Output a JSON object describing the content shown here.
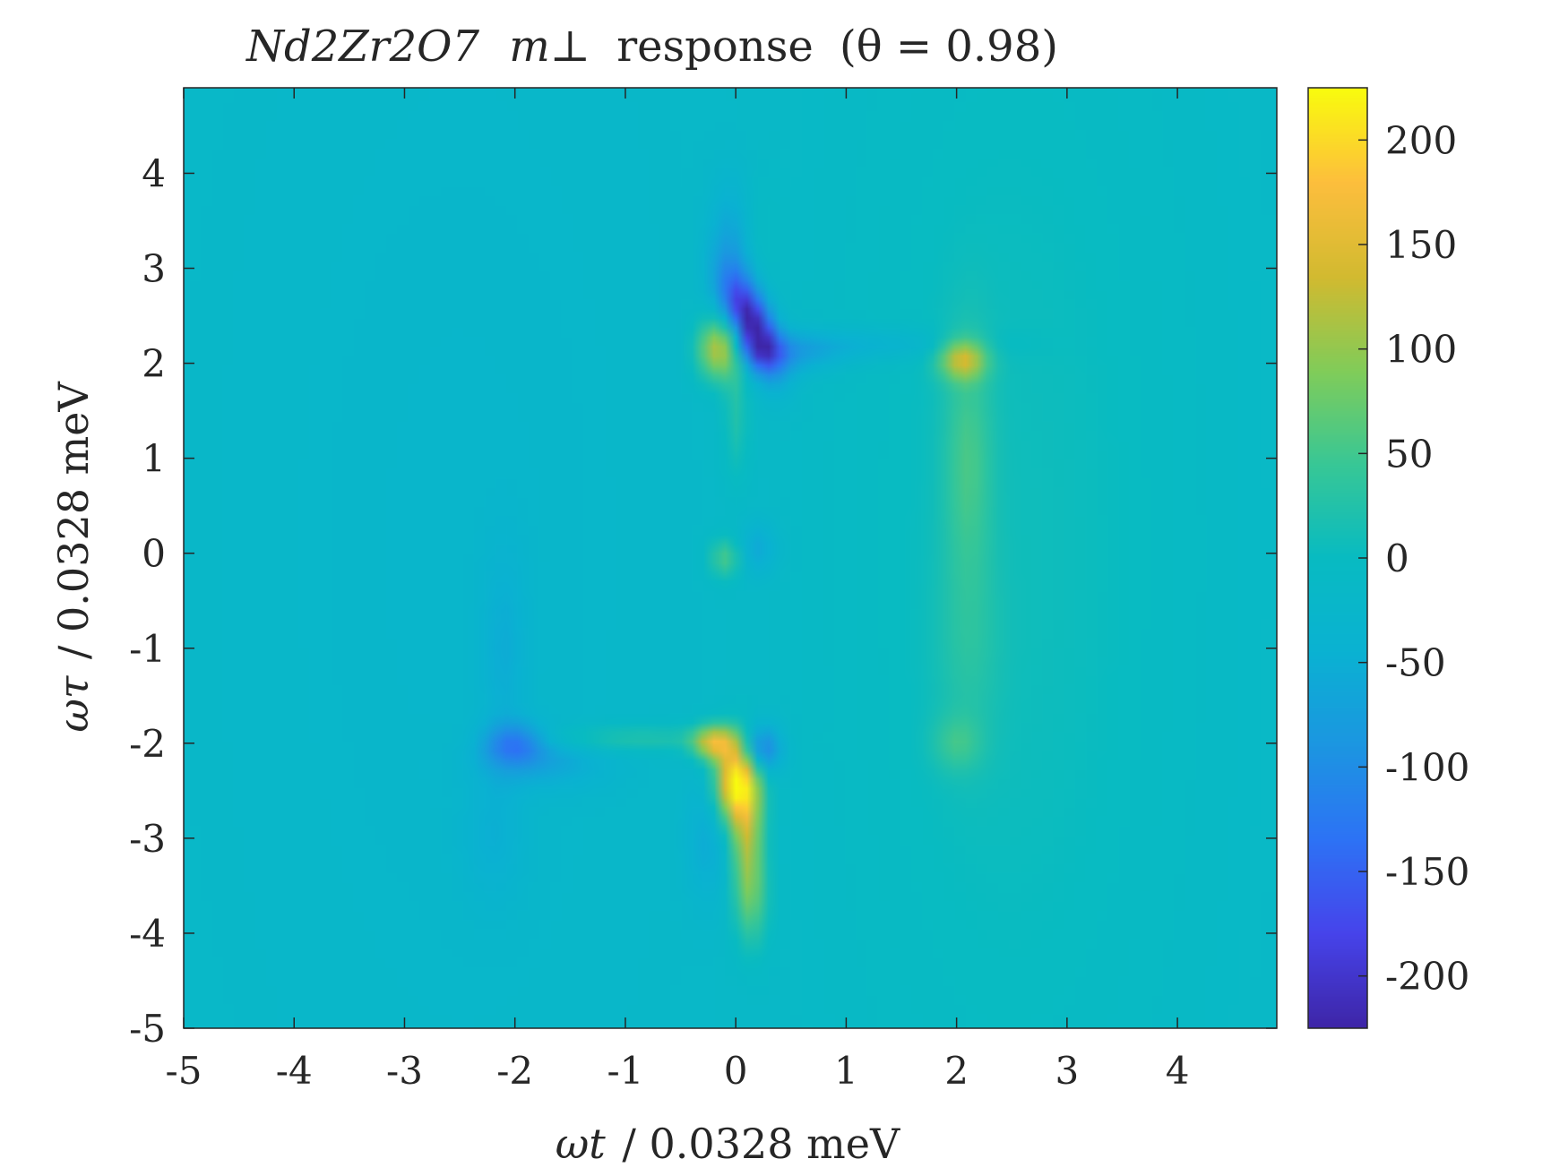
{
  "chart_data": {
    "type": "heatmap",
    "title": {
      "formula": "Nd2Zr2O7",
      "symbol": "m⊥",
      "text": "response",
      "parameter": "(θ = 0.98)"
    },
    "xlabel": {
      "symbol": "ωt",
      "text": "/ 0.0328 meV"
    },
    "ylabel": {
      "symbol": "ωτ",
      "text": "/ 0.0328 meV"
    },
    "xlim": [
      -5,
      4.9
    ],
    "ylim": [
      -5,
      4.9
    ],
    "x_ticks": [
      -5,
      -4,
      -3,
      -2,
      -1,
      0,
      1,
      2,
      3,
      4
    ],
    "y_ticks": [
      -5,
      -4,
      -3,
      -2,
      -1,
      0,
      1,
      2,
      3,
      4
    ],
    "colorbar": {
      "colormap": "parula",
      "range": [
        -225,
        225
      ],
      "ticks": [
        -200,
        -150,
        -100,
        -50,
        0,
        50,
        100,
        150,
        200
      ]
    },
    "background_value": -15,
    "features": [
      {
        "x": 0.15,
        "y": 2.4,
        "value": -220,
        "sx": 0.17,
        "sy": 0.35,
        "rho": -0.6
      },
      {
        "x": 0.0,
        "y": 3.2,
        "value": -90,
        "sx": 0.15,
        "sy": 0.5,
        "rho": 0.0
      },
      {
        "x": 0.4,
        "y": 2.1,
        "value": -60,
        "sx": 0.35,
        "sy": 0.15,
        "rho": 0.0
      },
      {
        "x": -0.15,
        "y": 2.15,
        "value": 160,
        "sx": 0.14,
        "sy": 0.22,
        "rho": 0.0
      },
      {
        "x": 0.0,
        "y": 1.5,
        "value": 40,
        "sx": 0.08,
        "sy": 0.5,
        "rho": 0.0
      },
      {
        "x": 0.1,
        "y": 3.3,
        "value": 50,
        "sx": 0.15,
        "sy": 0.45,
        "rho": 0.0
      },
      {
        "x": 2.05,
        "y": 2.05,
        "value": 125,
        "sx": 0.15,
        "sy": 0.15,
        "rho": 0.0
      },
      {
        "x": 2.1,
        "y": 1.0,
        "value": 50,
        "sx": 0.15,
        "sy": 0.9,
        "rho": 0.0
      },
      {
        "x": 1.2,
        "y": 2.2,
        "value": -35,
        "sx": 0.7,
        "sy": 0.12,
        "rho": 0.0
      },
      {
        "x": -0.1,
        "y": -0.05,
        "value": 70,
        "sx": 0.1,
        "sy": 0.15,
        "rho": 0.0
      },
      {
        "x": 0.2,
        "y": 0.05,
        "value": -45,
        "sx": 0.12,
        "sy": 0.2,
        "rho": 0.0
      },
      {
        "x": 0.0,
        "y": -2.4,
        "value": 225,
        "sx": 0.13,
        "sy": 0.3,
        "rho": 0.0
      },
      {
        "x": -0.2,
        "y": -2.0,
        "value": 150,
        "sx": 0.13,
        "sy": 0.13,
        "rho": 0.0
      },
      {
        "x": 0.1,
        "y": -3.0,
        "value": 120,
        "sx": 0.1,
        "sy": 0.5,
        "rho": 0.0
      },
      {
        "x": 0.15,
        "y": -3.7,
        "value": 50,
        "sx": 0.1,
        "sy": 0.35,
        "rho": 0.0
      },
      {
        "x": 0.22,
        "y": -2.05,
        "value": -120,
        "sx": 0.13,
        "sy": 0.17,
        "rho": 0.0
      },
      {
        "x": -0.25,
        "y": -3.0,
        "value": -40,
        "sx": 0.15,
        "sy": 0.5,
        "rho": 0.0
      },
      {
        "x": -2.0,
        "y": -2.0,
        "value": -95,
        "sx": 0.2,
        "sy": 0.15,
        "rho": 0.0
      },
      {
        "x": -1.7,
        "y": -2.2,
        "value": -40,
        "sx": 0.4,
        "sy": 0.2,
        "rho": 0.0
      },
      {
        "x": -1.0,
        "y": -1.95,
        "value": 45,
        "sx": 0.7,
        "sy": 0.1,
        "rho": 0.0
      },
      {
        "x": -2.1,
        "y": -1.0,
        "value": -30,
        "sx": 0.15,
        "sy": 0.8,
        "rho": 0.0
      },
      {
        "x": -2.2,
        "y": -3.0,
        "value": -25,
        "sx": 0.2,
        "sy": 0.5,
        "rho": 0.0
      },
      {
        "x": 2.0,
        "y": -2.0,
        "value": 40,
        "sx": 0.15,
        "sy": 0.2,
        "rho": 0.0
      },
      {
        "x": 2.1,
        "y": -1.0,
        "value": 25,
        "sx": 0.2,
        "sy": 0.8,
        "rho": 0.0
      },
      {
        "x": 2.5,
        "y": 0.0,
        "value": 22,
        "sx": 1.2,
        "sy": 5.0,
        "rho": 0.0
      },
      {
        "x": -2.5,
        "y": 0.0,
        "value": -10,
        "sx": 1.5,
        "sy": 5.0,
        "rho": 0.0
      }
    ]
  }
}
